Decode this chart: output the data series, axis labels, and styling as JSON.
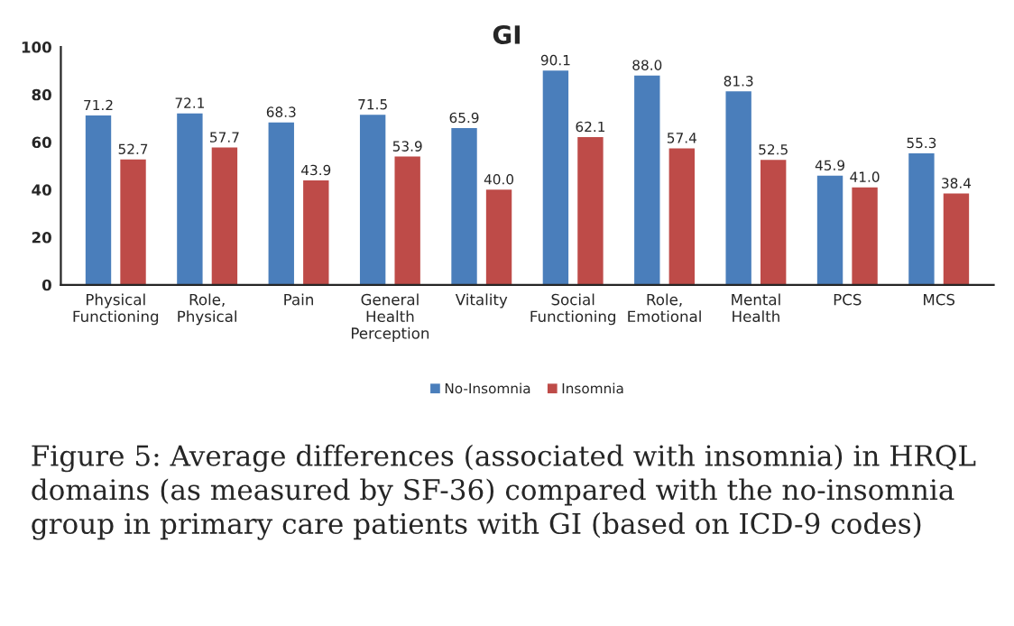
{
  "chart_data": {
    "type": "bar",
    "title": "GI",
    "categories": [
      "Physical\nFunctioning",
      "Role,\nPhysical",
      "Pain",
      "General\nHealth\nPerception",
      "Vitality",
      "Social\nFunctioning",
      "Role,\nEmotional",
      "Mental\nHealth",
      "PCS",
      "MCS"
    ],
    "series": [
      {
        "name": "No-Insomnia",
        "color": "#4a7ebb",
        "values": [
          71.2,
          72.1,
          68.3,
          71.5,
          65.9,
          90.1,
          88.0,
          81.3,
          45.9,
          55.3
        ],
        "value_labels": [
          "71.2",
          "72.1",
          "68.3",
          "71.5",
          "65.9",
          "90.1",
          "88.0",
          "81.3",
          "45.9",
          "55.3"
        ]
      },
      {
        "name": "Insomnia",
        "color": "#be4b48",
        "values": [
          52.7,
          57.7,
          43.9,
          53.9,
          40.0,
          62.1,
          57.4,
          52.5,
          41.0,
          38.4
        ],
        "value_labels": [
          "52.7",
          "57.7",
          "43.9",
          "53.9",
          "40.0",
          "62.1",
          "57.4",
          "52.5",
          "41.0",
          "38.4"
        ]
      }
    ],
    "ylim": [
      0,
      100
    ],
    "yticks": [
      0,
      20,
      40,
      60,
      80,
      100
    ],
    "grid": false,
    "legend": "bottom",
    "annotations": [
      "Figure 5: Average differences (associated with insomnia) in HRQL domains (as measured by SF-36) compared with the no-insomnia group in primary care patients with GI (based on ICD-9 codes)"
    ]
  }
}
